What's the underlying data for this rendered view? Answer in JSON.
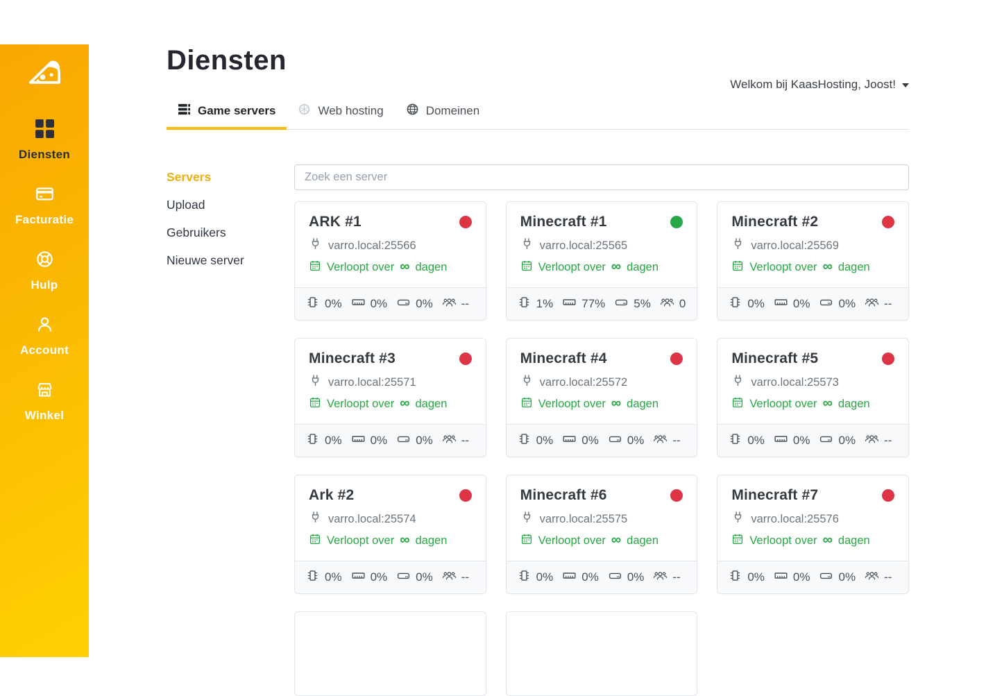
{
  "colors": {
    "accent": "#fdb913",
    "accent_text": "#efaf10",
    "sidebar_top": "#f8a702",
    "sidebar_bottom": "#ffd103",
    "online": "#28a745",
    "offline": "#dc3545",
    "expiry": "#28a745"
  },
  "sidebar": {
    "items": [
      {
        "label": "Diensten",
        "icon": "grid-icon",
        "active": true
      },
      {
        "label": "Facturatie",
        "icon": "credit-card-icon",
        "active": false
      },
      {
        "label": "Hulp",
        "icon": "life-ring-icon",
        "active": false
      },
      {
        "label": "Account",
        "icon": "user-icon",
        "active": false
      },
      {
        "label": "Winkel",
        "icon": "storefront-icon",
        "active": false
      }
    ]
  },
  "header": {
    "welcome": "Welkom bij KaasHosting, Joost!"
  },
  "page": {
    "title": "Diensten"
  },
  "tabs": [
    {
      "label": "Game servers",
      "icon": "server-stack-icon",
      "active": true
    },
    {
      "label": "Web hosting",
      "icon": "web-sphere-icon",
      "active": false
    },
    {
      "label": "Domeinen",
      "icon": "globe-icon",
      "active": false
    }
  ],
  "subnav": [
    {
      "label": "Servers",
      "active": true
    },
    {
      "label": "Upload",
      "active": false
    },
    {
      "label": "Gebruikers",
      "active": false
    },
    {
      "label": "Nieuwe server",
      "active": false
    }
  ],
  "search": {
    "placeholder": "Zoek een server"
  },
  "expiry": {
    "prefix": "Verloopt over",
    "infinity": "∞",
    "suffix": "dagen"
  },
  "servers": [
    {
      "name": "ARK #1",
      "host": "varro.local:25566",
      "status": "offline",
      "cpu": "0%",
      "ram": "0%",
      "disk": "0%",
      "players": "--"
    },
    {
      "name": "Minecraft #1",
      "host": "varro.local:25565",
      "status": "online",
      "cpu": "1%",
      "ram": "77%",
      "disk": "5%",
      "players": "0"
    },
    {
      "name": "Minecraft #2",
      "host": "varro.local:25569",
      "status": "offline",
      "cpu": "0%",
      "ram": "0%",
      "disk": "0%",
      "players": "--"
    },
    {
      "name": "Minecraft #3",
      "host": "varro.local:25571",
      "status": "offline",
      "cpu": "0%",
      "ram": "0%",
      "disk": "0%",
      "players": "--"
    },
    {
      "name": "Minecraft #4",
      "host": "varro.local:25572",
      "status": "offline",
      "cpu": "0%",
      "ram": "0%",
      "disk": "0%",
      "players": "--"
    },
    {
      "name": "Minecraft #5",
      "host": "varro.local:25573",
      "status": "offline",
      "cpu": "0%",
      "ram": "0%",
      "disk": "0%",
      "players": "--"
    },
    {
      "name": "Ark #2",
      "host": "varro.local:25574",
      "status": "offline",
      "cpu": "0%",
      "ram": "0%",
      "disk": "0%",
      "players": "--"
    },
    {
      "name": "Minecraft #6",
      "host": "varro.local:25575",
      "status": "offline",
      "cpu": "0%",
      "ram": "0%",
      "disk": "0%",
      "players": "--"
    },
    {
      "name": "Minecraft #7",
      "host": "varro.local:25576",
      "status": "offline",
      "cpu": "0%",
      "ram": "0%",
      "disk": "0%",
      "players": "--"
    }
  ],
  "partial_cards": 2,
  "icons": {
    "logo": "cheese-wedge-icon",
    "stats": [
      "cpu-chip-icon",
      "ram-icon",
      "disk-icon",
      "players-icon"
    ],
    "host": "plug-icon",
    "expiry": "calendar-icon",
    "user_menu": "caret-down-icon"
  }
}
